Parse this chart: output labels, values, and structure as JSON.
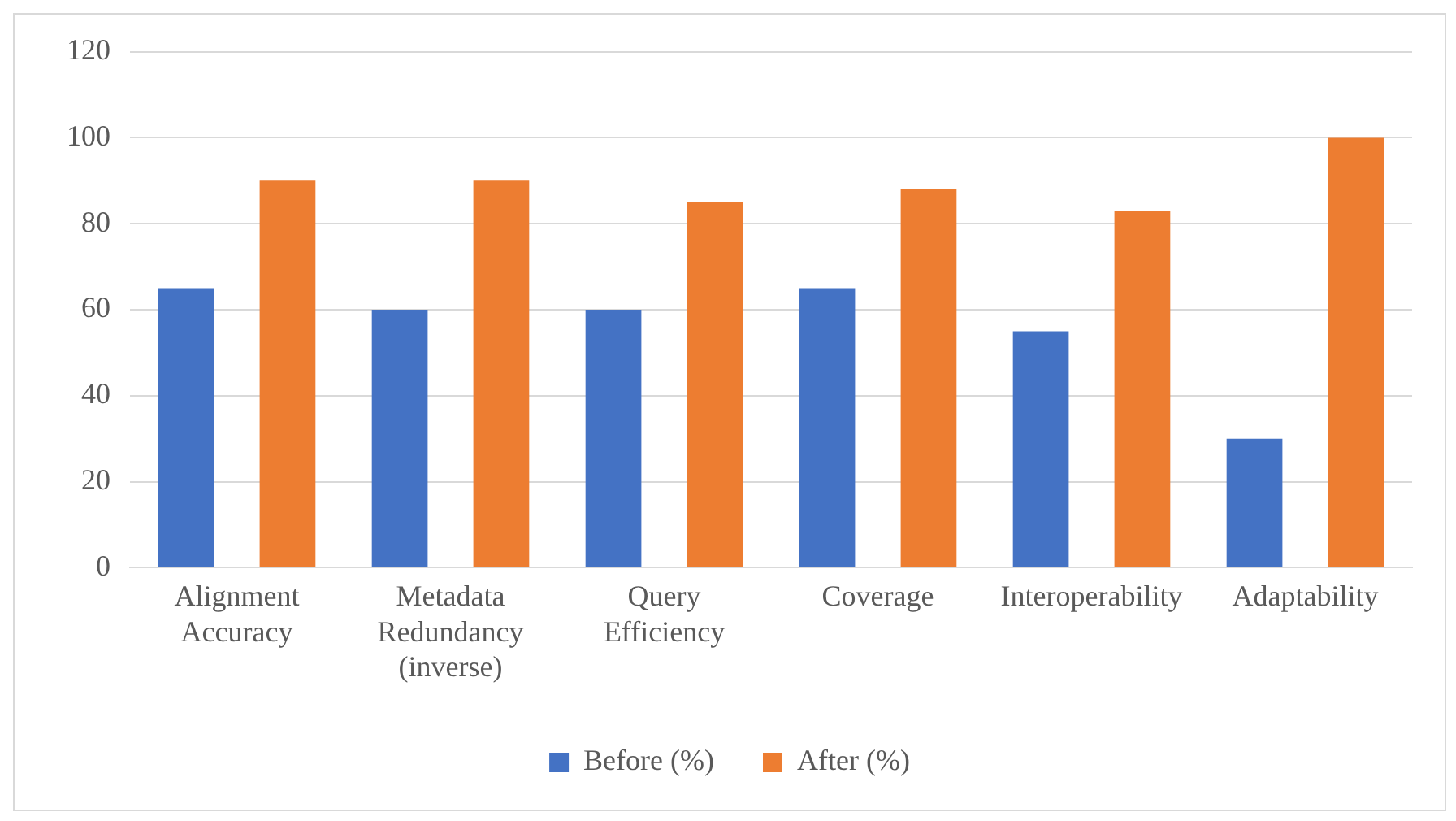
{
  "chart_data": {
    "type": "bar",
    "categories": [
      "Alignment Accuracy",
      "Metadata Redundancy (inverse)",
      "Query Efficiency",
      "Coverage",
      "Interoperability",
      "Adaptability"
    ],
    "series": [
      {
        "name": "Before (%)",
        "color": "#4472c4",
        "values": [
          65,
          60,
          60,
          65,
          55,
          30
        ]
      },
      {
        "name": "After (%)",
        "color": "#ed7d31",
        "values": [
          90,
          90,
          85,
          88,
          83,
          100
        ]
      }
    ],
    "ylim": [
      0,
      120
    ],
    "yticks": [
      0,
      20,
      40,
      60,
      80,
      100,
      120
    ],
    "grid": "y",
    "legend": "bottom"
  }
}
